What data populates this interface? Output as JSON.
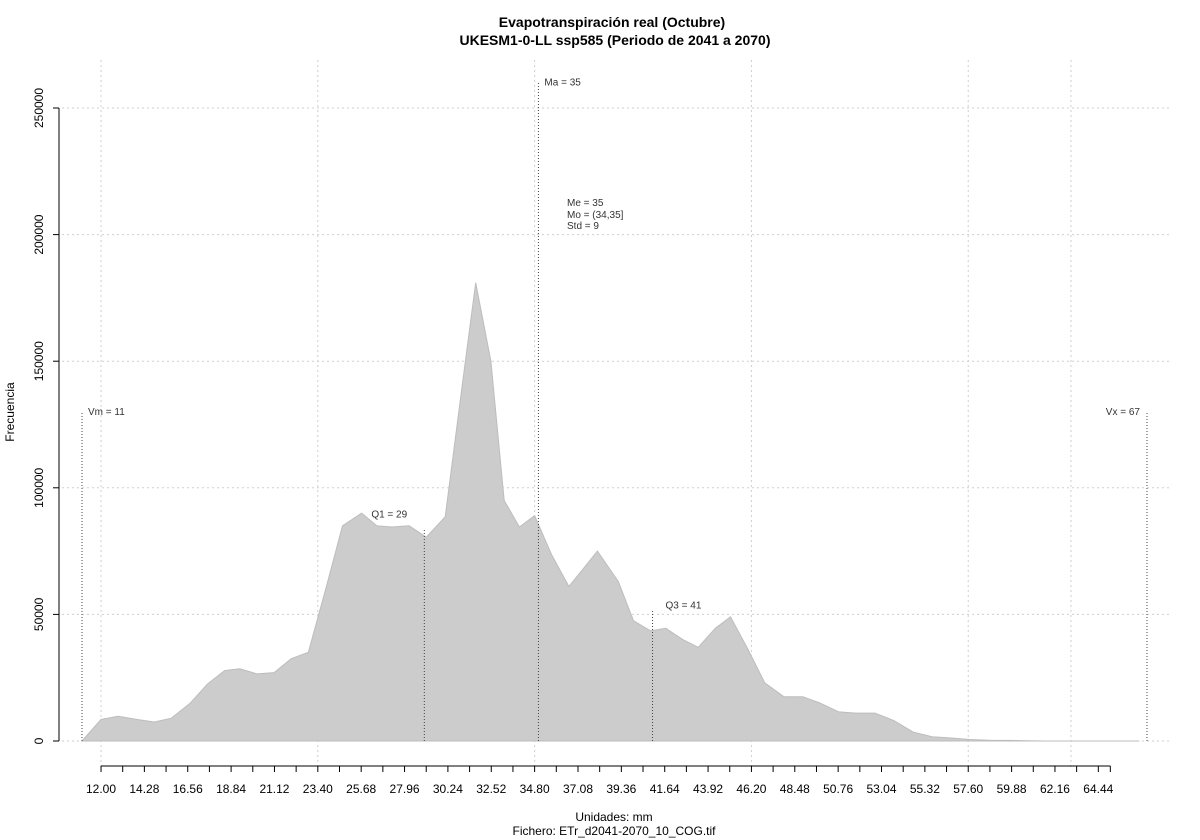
{
  "chart_data": {
    "type": "area",
    "title": "Evapotranspiración real (Octubre)",
    "subtitle": "UKESM1-0-LL ssp585 (Periodo de 2041 a 2070)",
    "xlabel": "Unidades: mm",
    "caption": "Fichero: ETr_d2041-2070_10_COG.tif",
    "ylabel": "Frecuencia",
    "xlim": [
      11,
      67
    ],
    "ylim": [
      0,
      260000
    ],
    "x_ticks": [
      "12.00",
      "14.28",
      "16.56",
      "18.84",
      "21.12",
      "23.40",
      "25.68",
      "27.96",
      "30.24",
      "32.52",
      "34.80",
      "37.08",
      "39.36",
      "41.64",
      "43.92",
      "46.20",
      "48.48",
      "50.76",
      "53.04",
      "55.32",
      "57.60",
      "59.88",
      "62.16",
      "64.44"
    ],
    "y_ticks": [
      0,
      50000,
      100000,
      150000,
      200000,
      250000
    ],
    "grid": true,
    "fill_color": "#cccccc",
    "series": [
      {
        "x": [
          11.0,
          12.0,
          12.9,
          13.9,
          14.8,
          15.7,
          16.7,
          17.6,
          18.5,
          19.3,
          20.2,
          21.1,
          22.0,
          22.9,
          23.8,
          24.7,
          25.7,
          26.5,
          27.3,
          28.2,
          29.1,
          30.1,
          31.0,
          31.7,
          32.5,
          33.2,
          34.0,
          34.8,
          35.7,
          36.6,
          37.3,
          38.1,
          39.2,
          40.0,
          40.9,
          41.7,
          42.6,
          43.4,
          44.3,
          45.1,
          46.0,
          46.9,
          47.9,
          48.9,
          49.8,
          50.8,
          51.7,
          52.7,
          53.7,
          54.7,
          55.7,
          56.7,
          57.7,
          58.7,
          59.7,
          60.7,
          61.7,
          62.7,
          63.7,
          64.7,
          65.7,
          66.6
        ],
        "y": [
          0,
          8500,
          9800,
          8500,
          7500,
          9000,
          15000,
          22500,
          27800,
          28500,
          26500,
          27000,
          32500,
          35000,
          59500,
          85000,
          90000,
          85000,
          84500,
          85000,
          80500,
          88500,
          141000,
          181000,
          150000,
          95000,
          84500,
          89000,
          73500,
          61000,
          67500,
          75000,
          63000,
          47500,
          43500,
          44500,
          40000,
          37000,
          44500,
          49000,
          36500,
          23000,
          17500,
          17500,
          15000,
          11500,
          11000,
          11000,
          8000,
          3500,
          1700,
          1200,
          600,
          300,
          250,
          100,
          0,
          0,
          0,
          0,
          0,
          0
        ]
      }
    ],
    "markers": [
      {
        "label": "Vm = 11",
        "x": 11,
        "top": 130000
      },
      {
        "label": "Q1 = 29",
        "x": 29,
        "top": 84000
      },
      {
        "label": "Ma = 35",
        "x": 35,
        "top": 260000
      },
      {
        "label": "Q3 = 41",
        "x": 41,
        "top": 52000
      },
      {
        "label": "Vx = 67",
        "x": 67,
        "top": 130000
      }
    ],
    "stats": [
      "Me = 35",
      "Mo = (34,35]",
      "Std = 9"
    ]
  }
}
